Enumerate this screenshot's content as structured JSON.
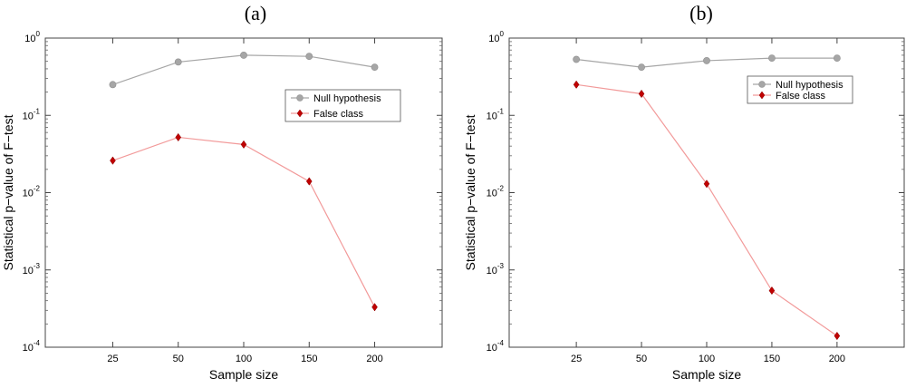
{
  "chart_data": [
    {
      "type": "line",
      "panel_label": "(a)",
      "xlabel": "Sample size",
      "ylabel": "Statistical p−value of F−test",
      "yscale": "log",
      "ylim": [
        0.0001,
        1
      ],
      "y_ticks": [
        {
          "base": "10",
          "exp": "0",
          "value": 1
        },
        {
          "base": "10",
          "exp": "-1",
          "value": 0.1
        },
        {
          "base": "10",
          "exp": "-2",
          "value": 0.01
        },
        {
          "base": "10",
          "exp": "-3",
          "value": 0.001
        },
        {
          "base": "10",
          "exp": "-4",
          "value": 0.0001
        }
      ],
      "categories": [
        "25",
        "50",
        "100",
        "150",
        "200"
      ],
      "legend_position": "upper-right",
      "series": [
        {
          "name": "Null hypothesis",
          "color": "#a6a6a6",
          "marker": "circle",
          "values": [
            0.25,
            0.49,
            0.6,
            0.58,
            0.42
          ]
        },
        {
          "name": "False class",
          "color": "#f29a9a",
          "marker_color": "#c00000",
          "marker": "diamond",
          "values": [
            0.026,
            0.052,
            0.042,
            0.014,
            0.00033
          ]
        }
      ]
    },
    {
      "type": "line",
      "panel_label": "(b)",
      "xlabel": "Sample size",
      "ylabel": "Statistical p−value of F−test",
      "yscale": "log",
      "ylim": [
        0.0001,
        1
      ],
      "y_ticks": [
        {
          "base": "10",
          "exp": "0",
          "value": 1
        },
        {
          "base": "10",
          "exp": "-1",
          "value": 0.1
        },
        {
          "base": "10",
          "exp": "-2",
          "value": 0.01
        },
        {
          "base": "10",
          "exp": "-3",
          "value": 0.001
        },
        {
          "base": "10",
          "exp": "-4",
          "value": 0.0001
        }
      ],
      "categories": [
        "25",
        "50",
        "100",
        "150",
        "200"
      ],
      "legend_position": "upper-right",
      "series": [
        {
          "name": "Null hypothesis",
          "color": "#a6a6a6",
          "marker": "circle",
          "values": [
            0.53,
            0.42,
            0.51,
            0.55,
            0.55
          ]
        },
        {
          "name": "False class",
          "color": "#f29a9a",
          "marker_color": "#c00000",
          "marker": "diamond",
          "values": [
            0.25,
            0.19,
            0.013,
            0.00054,
            0.00014
          ]
        }
      ]
    }
  ]
}
